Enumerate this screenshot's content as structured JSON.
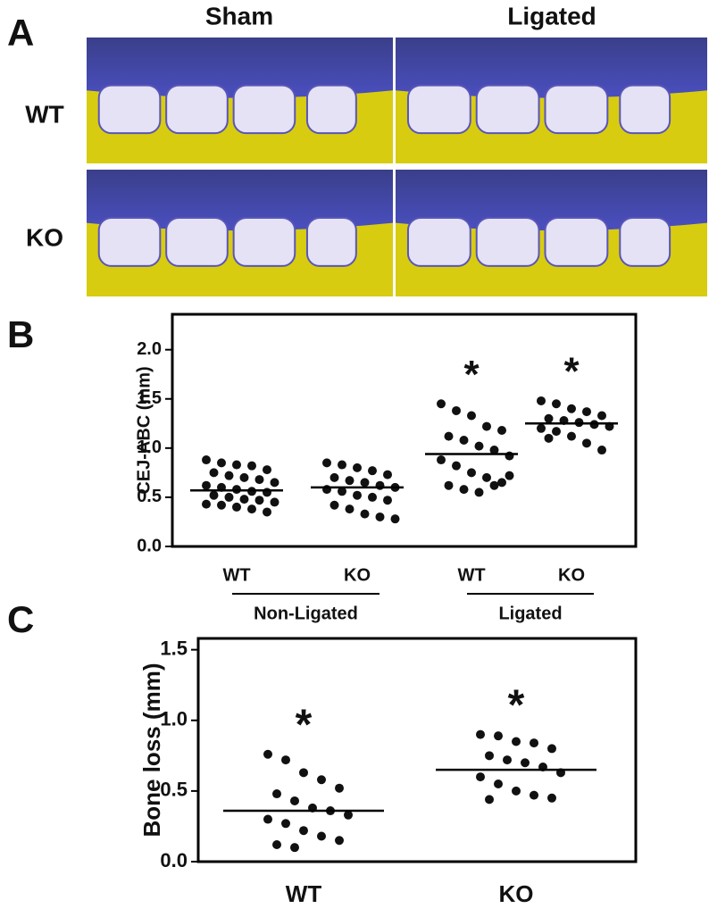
{
  "panel_a": {
    "letter": "A",
    "columns": [
      "Sham",
      "Ligated"
    ],
    "rows": [
      "WT",
      "KO"
    ]
  },
  "chart_data": [
    {
      "type": "dot",
      "letter": "B",
      "ylabel": "CEJ-ABC (mm)",
      "categories": [
        "WT",
        "KO",
        "WT",
        "KO"
      ],
      "groups": [
        {
          "label": "Non-Ligated",
          "members": [
            0,
            1
          ]
        },
        {
          "label": "Ligated",
          "members": [
            2,
            3
          ]
        }
      ],
      "values": [
        [
          0.88,
          0.85,
          0.83,
          0.82,
          0.78,
          0.75,
          0.72,
          0.7,
          0.68,
          0.65,
          0.62,
          0.6,
          0.58,
          0.56,
          0.55,
          0.52,
          0.5,
          0.48,
          0.47,
          0.45,
          0.43,
          0.42,
          0.4,
          0.38,
          0.35
        ],
        [
          0.85,
          0.83,
          0.8,
          0.77,
          0.73,
          0.7,
          0.67,
          0.65,
          0.62,
          0.6,
          0.58,
          0.56,
          0.52,
          0.5,
          0.47,
          0.42,
          0.38,
          0.33,
          0.3,
          0.28
        ],
        [
          1.45,
          1.38,
          1.33,
          1.22,
          1.18,
          1.12,
          1.08,
          1.02,
          0.98,
          0.92,
          0.88,
          0.82,
          0.75,
          0.7,
          0.65,
          0.62,
          0.58,
          0.55,
          0.62,
          0.72
        ],
        [
          1.48,
          1.45,
          1.4,
          1.37,
          1.33,
          1.3,
          1.28,
          1.26,
          1.24,
          1.22,
          1.2,
          1.17,
          1.12,
          1.05,
          0.98,
          1.1
        ]
      ],
      "means": [
        0.57,
        0.6,
        0.94,
        1.25
      ],
      "annotations": [
        {
          "text": "*",
          "category": 2
        },
        {
          "text": "*",
          "category": 3
        }
      ],
      "color": "#111111",
      "ylim": [
        0,
        2.36
      ],
      "yticks": [
        {
          "value": 0,
          "label": "0.0"
        },
        {
          "value": 0.5,
          "label": "0.5"
        },
        {
          "value": 1,
          "label": "1.0"
        },
        {
          "value": 1.5,
          "label": "1.5"
        },
        {
          "value": 2,
          "label": "2.0"
        }
      ]
    },
    {
      "type": "dot",
      "letter": "C",
      "ylabel": "Bone loss (mm)",
      "categories": [
        "WT",
        "KO"
      ],
      "values": [
        [
          0.76,
          0.72,
          0.63,
          0.58,
          0.52,
          0.48,
          0.43,
          0.38,
          0.36,
          0.33,
          0.3,
          0.27,
          0.22,
          0.18,
          0.15,
          0.12,
          0.1
        ],
        [
          0.9,
          0.89,
          0.85,
          0.84,
          0.8,
          0.75,
          0.72,
          0.7,
          0.67,
          0.63,
          0.6,
          0.55,
          0.5,
          0.47,
          0.45,
          0.44
        ]
      ],
      "means": [
        0.36,
        0.65
      ],
      "annotations": [
        {
          "text": "*",
          "category": 0
        },
        {
          "text": "*",
          "category": 1
        }
      ],
      "color": "#111111",
      "ylim": [
        0,
        1.58
      ],
      "yticks": [
        {
          "value": 0,
          "label": "0.0"
        },
        {
          "value": 0.5,
          "label": "0.5"
        },
        {
          "value": 1,
          "label": "1.0"
        },
        {
          "value": 1.5,
          "label": "1.5"
        }
      ]
    }
  ]
}
